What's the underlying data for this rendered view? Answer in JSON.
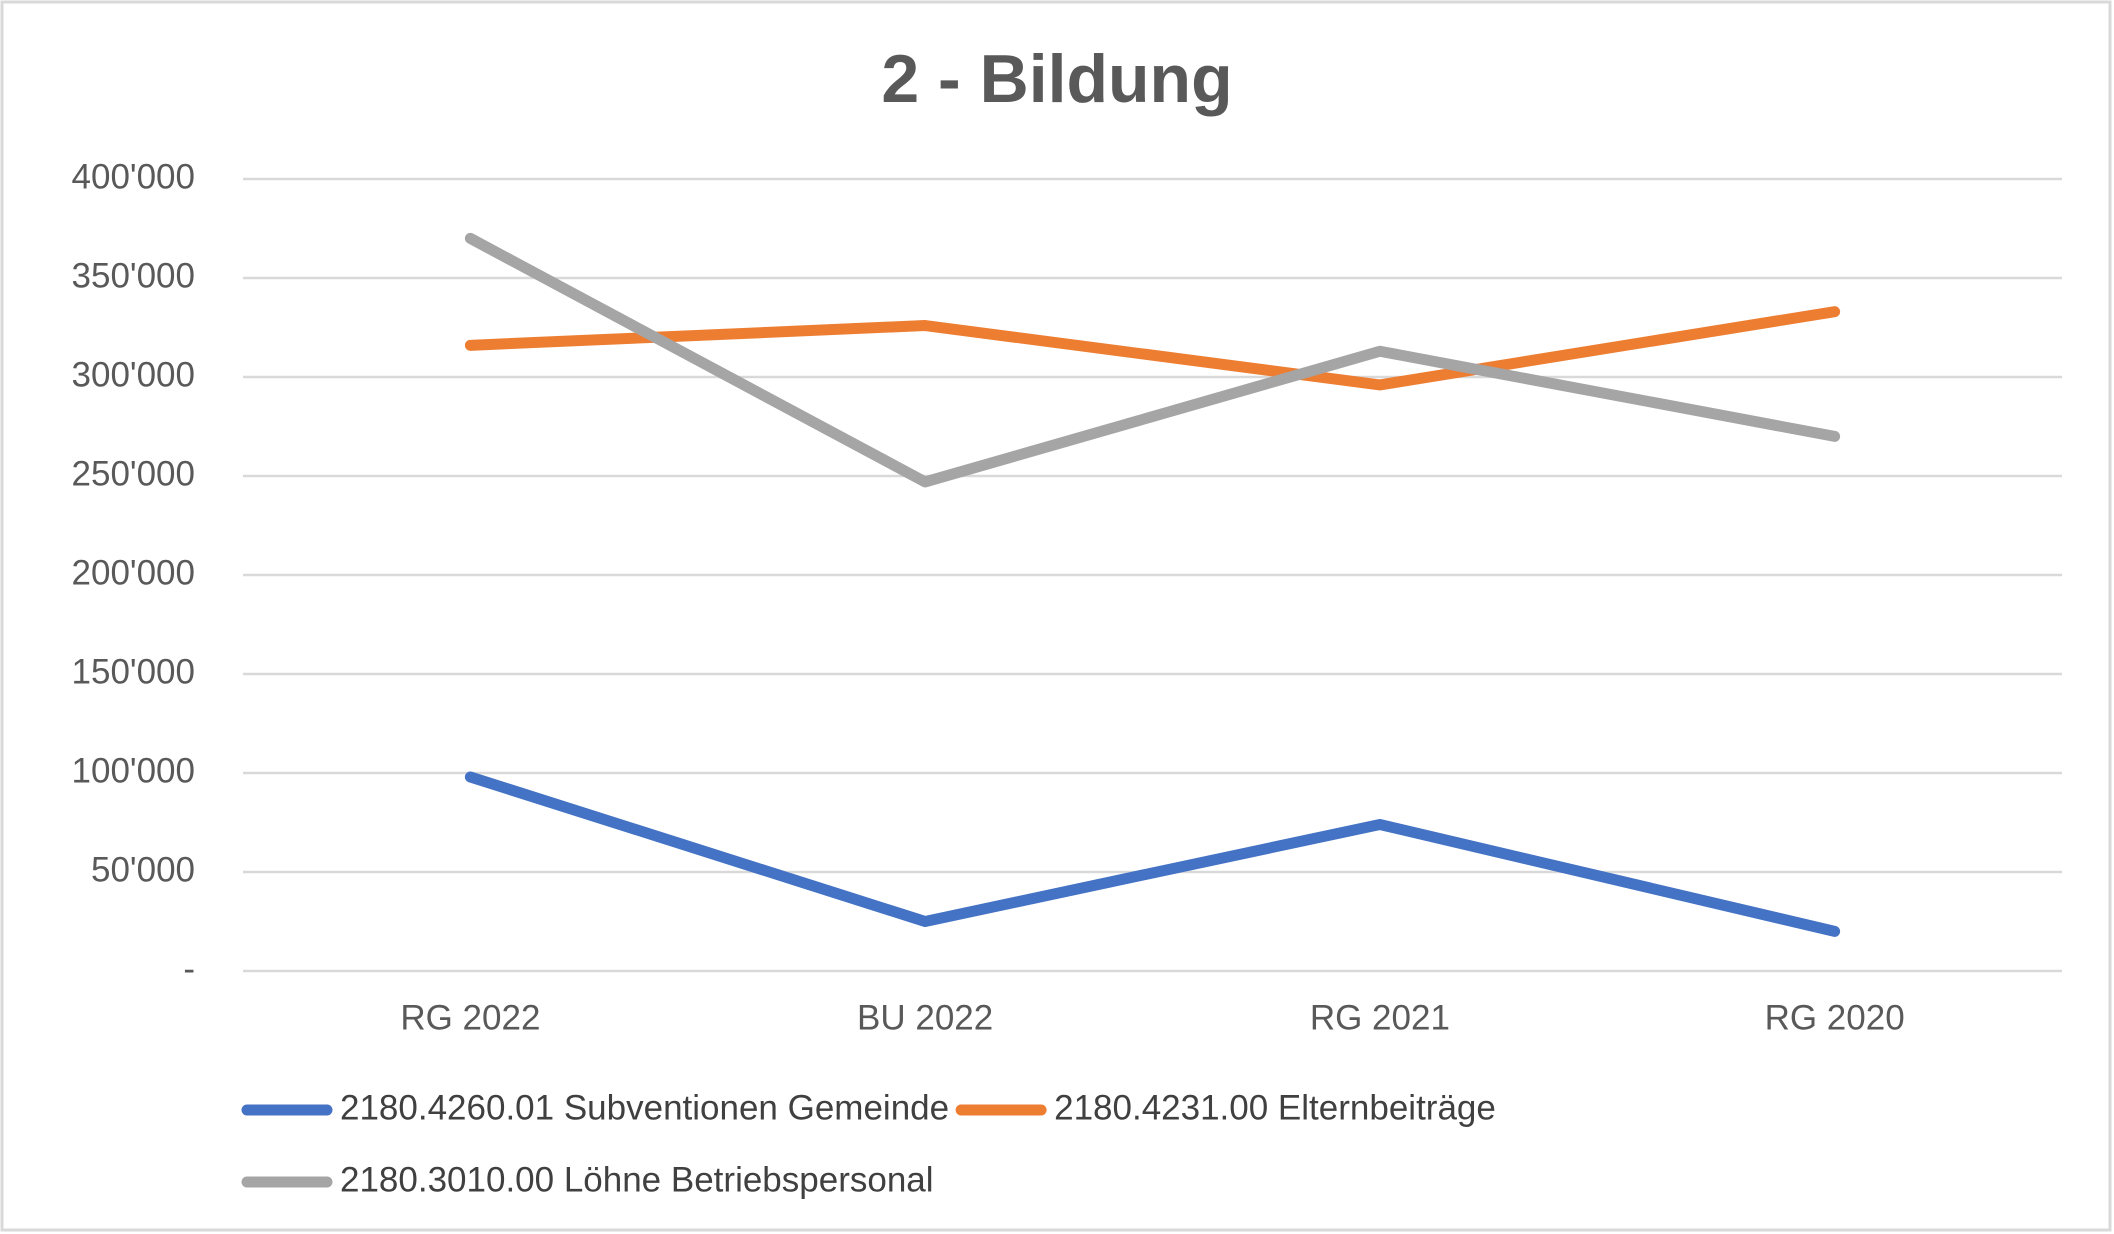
{
  "chart_data": {
    "type": "line",
    "title": "2 - Bildung",
    "categories": [
      "RG 2022",
      "BU 2022",
      "RG 2021",
      "RG 2020"
    ],
    "series": [
      {
        "name": "2180.4260.01 Subventionen Gemeinde",
        "color": "#4472c4",
        "values": [
          98000,
          25000,
          74000,
          20000
        ]
      },
      {
        "name": "2180.4231.00 Elternbeiträge",
        "color": "#ed7d31",
        "values": [
          316000,
          326000,
          296000,
          333000
        ]
      },
      {
        "name": "2180.3010.00 Löhne Betriebspersonal",
        "color": "#a5a5a5",
        "values": [
          370000,
          247000,
          313000,
          270000
        ]
      }
    ],
    "ylim": [
      0,
      400000
    ],
    "yticks": [
      {
        "value": 0,
        "label": "-"
      },
      {
        "value": 50000,
        "label": "50'000"
      },
      {
        "value": 100000,
        "label": "100'000"
      },
      {
        "value": 150000,
        "label": "150'000"
      },
      {
        "value": 200000,
        "label": "200'000"
      },
      {
        "value": 250000,
        "label": "250'000"
      },
      {
        "value": 300000,
        "label": "300'000"
      },
      {
        "value": 350000,
        "label": "350'000"
      },
      {
        "value": 400000,
        "label": "400'000"
      }
    ],
    "grid": true,
    "legend": "bottom"
  }
}
